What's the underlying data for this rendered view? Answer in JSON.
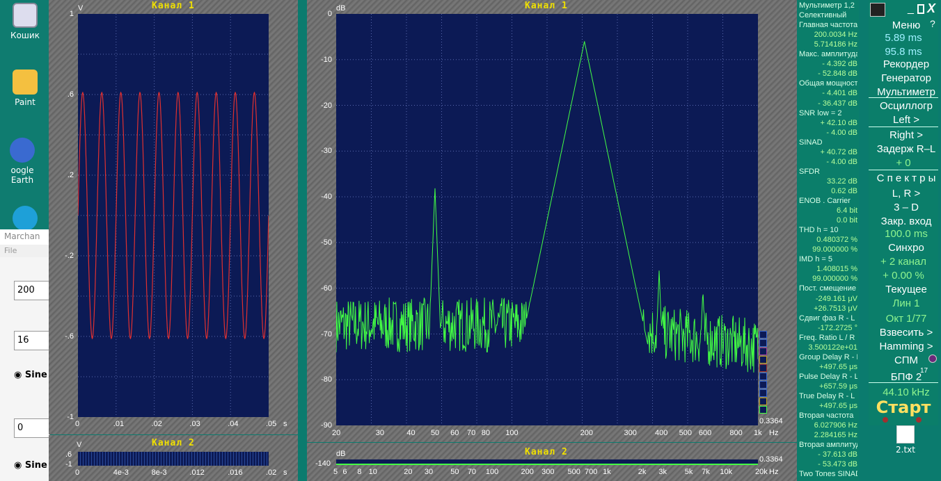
{
  "desktop": {
    "icons": [
      {
        "label": "Кошик"
      },
      {
        "label": "Paint"
      },
      {
        "label": "oogle Earth"
      }
    ],
    "file_label": "2.txt",
    "win_title": "Marchan",
    "win_menu": "File",
    "field1": "200",
    "field2": "16",
    "radio1": "Sine",
    "field3": "0",
    "radio2": "Sine"
  },
  "osc1": {
    "title": "Канал 1",
    "yunit": "V",
    "xunit": "s",
    "yticks": [
      "1",
      ".6",
      ".2",
      "-.2",
      "-.6",
      "-1"
    ],
    "xticks": [
      "0",
      ".01",
      ".02",
      ".03",
      ".04",
      ".05"
    ]
  },
  "osc2": {
    "title": "Канал 2",
    "yunit": "V",
    "ytop": ".6",
    "ybot": "-1",
    "xunit": "s",
    "xticks": [
      "0",
      "4e-3",
      "8e-3",
      ".012",
      ".016",
      ".02"
    ]
  },
  "spec1": {
    "title": "Канал 1",
    "yunit": "dB",
    "xunit": "Hz",
    "corner": "0.3364",
    "yticks": [
      "0",
      "-10",
      "-20",
      "-30",
      "-40",
      "-50",
      "-60",
      "-70",
      "-80",
      "-90"
    ],
    "xticks": [
      "20",
      "30",
      "40",
      "50",
      "60",
      "70",
      "80",
      "100",
      "200",
      "300",
      "400",
      "500",
      "600",
      "800",
      "1k"
    ]
  },
  "spec2": {
    "title": "Канал 2",
    "yunit": "dB",
    "ybot": "-140",
    "xunit": "Hz",
    "corner": "0.3364",
    "xticks": [
      "5",
      "6",
      "8",
      "10",
      "20",
      "30",
      "50",
      "70",
      "100",
      "200",
      "300",
      "500",
      "700",
      "1k",
      "2k",
      "3k",
      "5k",
      "7k",
      "10k",
      "20k"
    ]
  },
  "chart_data": [
    {
      "type": "line",
      "x": [
        0,
        0.05
      ],
      "series": [
        {
          "values": [
            -0.61,
            0.61
          ]
        }
      ],
      "ylim": [
        -1,
        1
      ],
      "freq_hz": 200,
      "color": "#e03030"
    },
    {
      "type": "line",
      "x": [
        20,
        1000
      ],
      "xscale": "log",
      "ylim": [
        -90,
        0
      ],
      "color": "#44ff44",
      "peaks": [
        {
          "x": 50,
          "y": -38
        },
        {
          "x": 200,
          "y": -6
        },
        {
          "x": 400,
          "y": -56
        },
        {
          "x": 600,
          "y": -60
        }
      ]
    }
  ],
  "multimeter": [
    [
      "Мультиметр 1,2",
      "lbl"
    ],
    [
      "Селективный",
      "lbl"
    ],
    [
      "Главная частота",
      "lbl"
    ],
    [
      "200.0034  Hz",
      "val"
    ],
    [
      "5.714186  Hz",
      "val"
    ],
    [
      "Макс. амплитуда",
      "lbl"
    ],
    [
      "-   4.392 dB",
      "val"
    ],
    [
      "-  52.848 dB",
      "val"
    ],
    [
      "Общая мощность",
      "lbl"
    ],
    [
      "-   4.401 dB",
      "val"
    ],
    [
      "-  36.437 dB",
      "val"
    ],
    [
      "SNR     low = 2",
      "lbl"
    ],
    [
      "+  42.10 dB",
      "val"
    ],
    [
      "-   4.00 dB",
      "val"
    ],
    [
      "SINAD",
      "lbl"
    ],
    [
      "+  40.72 dB",
      "val"
    ],
    [
      "-   4.00 dB",
      "val"
    ],
    [
      "SFDR",
      "lbl"
    ],
    [
      "33.22 dB",
      "val"
    ],
    [
      "0.62 dB",
      "val"
    ],
    [
      "ENOB . Carrier",
      "lbl"
    ],
    [
      "6.4 bit",
      "val"
    ],
    [
      "0.0 bit",
      "val"
    ],
    [
      "THD        h = 10",
      "lbl"
    ],
    [
      "0.480372 %",
      "val"
    ],
    [
      "99.000000 %",
      "val"
    ],
    [
      "IMD        h =  5",
      "lbl"
    ],
    [
      "1.408015 %",
      "val"
    ],
    [
      "99.000000 %",
      "val"
    ],
    [
      "Пост. смещение",
      "lbl"
    ],
    [
      "-249.161 μV",
      "val"
    ],
    [
      "+26.7513 μV",
      "val"
    ],
    [
      "Сдвиг фаз R - L",
      "lbl"
    ],
    [
      "-172.2725 °",
      "val"
    ],
    [
      "Freq. Ratio  L / R",
      "lbl"
    ],
    [
      "3.500122e+01",
      "val"
    ],
    [
      "Group Delay R - L",
      "lbl"
    ],
    [
      "+497.65 μs",
      "val"
    ],
    [
      "Pulse Delay R - L",
      "lbl"
    ],
    [
      "+657.59 μs",
      "val"
    ],
    [
      "True  Delay R - L",
      "lbl"
    ],
    [
      "+497.65 μs",
      "val"
    ],
    [
      "Вторая частота",
      "lbl"
    ],
    [
      "6.027906  Hz",
      "val"
    ],
    [
      "2.284165  Hz",
      "val"
    ],
    [
      "Вторая амплитуда",
      "lbl"
    ],
    [
      "-  37.613 dB",
      "val"
    ],
    [
      "-  53.473 dB",
      "val"
    ],
    [
      "Two Tones SINAD",
      "lbl"
    ]
  ],
  "menu": {
    "close": "X",
    "min": "_",
    "help": "?",
    "items": [
      [
        "Меню",
        "m"
      ],
      [
        "5.89 ms",
        "cy"
      ],
      [
        "95.8 ms",
        "cy"
      ],
      [
        "Рекордер",
        "m"
      ],
      [
        "Генератор",
        "m"
      ],
      [
        "Мультиметр",
        "m"
      ],
      [
        "Осциллогр",
        "m"
      ],
      [
        "Left   >",
        "m"
      ],
      [
        "Right   >",
        "m"
      ],
      [
        "Задерж R–L",
        "m"
      ],
      [
        "+      0",
        "gr"
      ],
      [
        "С п е к т р ы",
        "m"
      ],
      [
        "L, R     >",
        "m"
      ],
      [
        "3 – D",
        "m"
      ],
      [
        "Закр. вход",
        "m"
      ],
      [
        "100.0 ms",
        "gr"
      ],
      [
        "Синхро",
        "m"
      ],
      [
        "+ 2 канал",
        "gr"
      ],
      [
        "+ 0.00 %",
        "gr"
      ],
      [
        "Текущее",
        "m"
      ],
      [
        "Лин       1",
        "gr"
      ],
      [
        "Окт  1/77",
        "gr"
      ],
      [
        "Взвесить  >",
        "m"
      ],
      [
        "Hamming >",
        "m"
      ],
      [
        "СПМ",
        "m"
      ],
      [
        "БПФ   2",
        "m"
      ],
      [
        "44.10 kHz",
        "gr"
      ]
    ],
    "start": "Старт",
    "fft_exp": "17"
  }
}
